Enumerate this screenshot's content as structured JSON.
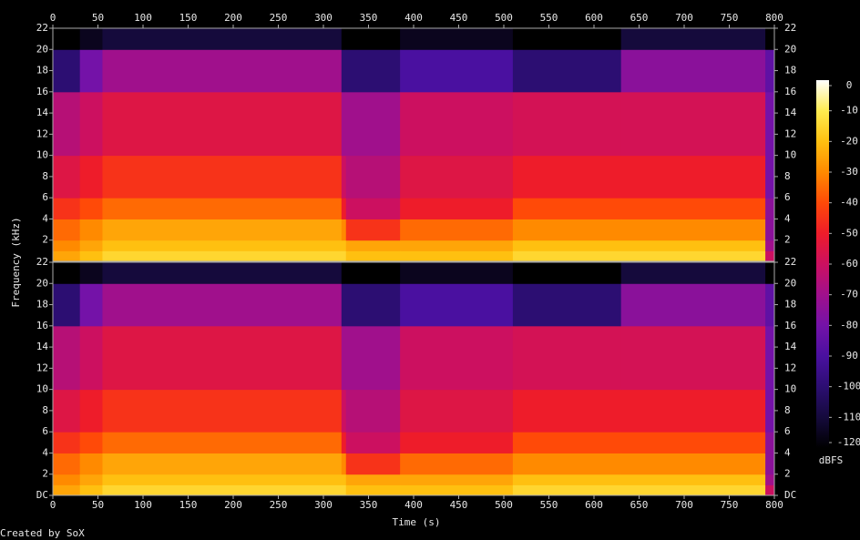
{
  "chart_data": {
    "type": "spectrogram",
    "x_label": "Time (s)",
    "y_label": "Frequency (kHz)",
    "footer": "Created by SoX",
    "xlim": [
      0,
      800
    ],
    "xticks": [
      0,
      50,
      100,
      150,
      200,
      250,
      300,
      350,
      400,
      450,
      500,
      550,
      600,
      650,
      700,
      750,
      800
    ],
    "ylim": [
      0,
      22
    ],
    "time_bins": [
      0,
      30,
      55,
      320,
      325,
      385,
      510,
      630,
      790,
      800
    ],
    "freq_bins": [
      0,
      1,
      2,
      4,
      6,
      10,
      16,
      20,
      22
    ],
    "panels": [
      {
        "yticks": [
          2,
          4,
          6,
          8,
          10,
          12,
          14,
          16,
          18,
          20,
          22
        ],
        "values": [
          [
            -25,
            -30,
            -35,
            -45,
            -55,
            -65,
            -100,
            -120
          ],
          [
            -20,
            -25,
            -30,
            -40,
            -50,
            -60,
            -80,
            -115
          ],
          [
            -15,
            -20,
            -25,
            -35,
            -45,
            -55,
            -70,
            -110
          ],
          [
            -15,
            -20,
            -30,
            -50,
            -60,
            -70,
            -100,
            -120
          ],
          [
            -20,
            -25,
            -45,
            -60,
            -65,
            -70,
            -100,
            -120
          ],
          [
            -20,
            -25,
            -35,
            -50,
            -55,
            -60,
            -90,
            -115
          ],
          [
            -15,
            -20,
            -30,
            -40,
            -50,
            -58,
            -100,
            -120
          ],
          [
            -15,
            -20,
            -30,
            -40,
            -50,
            -58,
            -75,
            -110
          ],
          [
            -60,
            -70,
            -75,
            -75,
            -80,
            -80,
            -85,
            -120
          ]
        ]
      },
      {
        "yticks": [
          {
            "value": 0,
            "label": "DC"
          },
          2,
          4,
          6,
          8,
          10,
          12,
          14,
          16,
          18,
          20,
          22
        ],
        "values": [
          [
            -25,
            -30,
            -35,
            -45,
            -55,
            -65,
            -100,
            -120
          ],
          [
            -20,
            -25,
            -30,
            -40,
            -50,
            -60,
            -80,
            -115
          ],
          [
            -15,
            -20,
            -25,
            -35,
            -45,
            -55,
            -70,
            -110
          ],
          [
            -15,
            -20,
            -30,
            -50,
            -60,
            -70,
            -100,
            -120
          ],
          [
            -20,
            -25,
            -45,
            -60,
            -65,
            -70,
            -100,
            -120
          ],
          [
            -20,
            -25,
            -35,
            -50,
            -55,
            -60,
            -90,
            -115
          ],
          [
            -15,
            -20,
            -30,
            -40,
            -50,
            -58,
            -100,
            -120
          ],
          [
            -15,
            -20,
            -30,
            -40,
            -50,
            -58,
            -75,
            -110
          ],
          [
            -60,
            -70,
            -75,
            -75,
            -80,
            -80,
            -85,
            -120
          ]
        ]
      }
    ],
    "colorbar": {
      "label": "dBFS",
      "lim": [
        -120,
        0
      ],
      "ticks": [
        0,
        -10,
        -20,
        -30,
        -40,
        -50,
        -60,
        -70,
        -80,
        -90,
        -100,
        -110,
        -120
      ],
      "colors": [
        "#000000",
        "#150a3c",
        "#2c0e72",
        "#4a10a0",
        "#7412a8",
        "#a0108c",
        "#cc1060",
        "#ee1c2a",
        "#ff4a08",
        "#ff8a00",
        "#ffc010",
        "#ffec50",
        "#ffffff"
      ]
    }
  }
}
